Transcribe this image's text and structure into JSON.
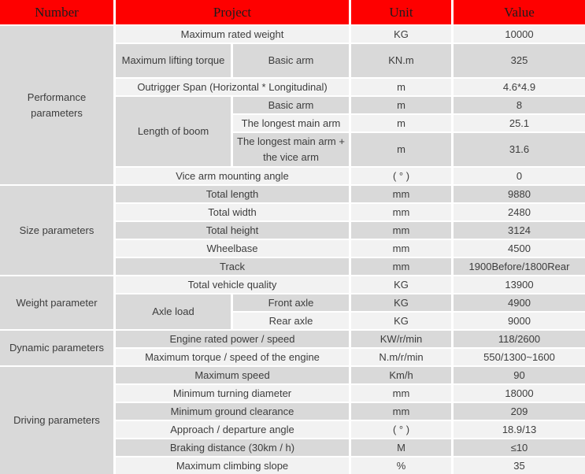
{
  "header": {
    "columns": [
      "Number",
      "Project",
      "Unit",
      "Value"
    ]
  },
  "colors": {
    "header_bg": "#fe0000",
    "header_text": "#1c1c1c",
    "row_light": "#f2f2f2",
    "row_dark": "#d9d9d9",
    "text": "#3d3d3d",
    "grid_lines": "#ffffff"
  },
  "groups": [
    {
      "name": "Performance parameters",
      "rows": [
        {
          "project": "Maximum rated weight",
          "unit": "KG",
          "value": "10000"
        },
        {
          "project": "Maximum lifting torque",
          "sub": "Basic arm",
          "unit": "KN.m",
          "value": "325",
          "tall": true
        },
        {
          "project": "Outrigger Span (Horizontal * Longitudinal)",
          "unit": "m",
          "value": "4.6*4.9"
        },
        {
          "project": "Length of boom",
          "project_rowspan": 3,
          "sub": "Basic arm",
          "unit": "m",
          "value": "8"
        },
        {
          "sub": "The longest main arm",
          "unit": "m",
          "value": "25.1"
        },
        {
          "sub": "The longest main arm + the vice arm",
          "unit": "m",
          "value": "31.6",
          "tall": true
        },
        {
          "project": "Vice arm mounting angle",
          "unit": "( ° )",
          "value": "0"
        }
      ]
    },
    {
      "name": "Size parameters",
      "rows": [
        {
          "project": "Total length",
          "unit": "mm",
          "value": "9880"
        },
        {
          "project": "Total width",
          "unit": "mm",
          "value": "2480"
        },
        {
          "project": "Total height",
          "unit": "mm",
          "value": "3124"
        },
        {
          "project": "Wheelbase",
          "unit": "mm",
          "value": "4500"
        },
        {
          "project": "Track",
          "unit": "mm",
          "value": "1900Before/1800Rear"
        }
      ]
    },
    {
      "name": "Weight parameter",
      "rows": [
        {
          "project": "Total vehicle quality",
          "unit": "KG",
          "value": "13900"
        },
        {
          "project": "Axle load",
          "project_rowspan": 2,
          "sub": "Front axle",
          "unit": "KG",
          "value": "4900"
        },
        {
          "sub": "Rear axle",
          "unit": "KG",
          "value": "9000"
        }
      ]
    },
    {
      "name": "Dynamic parameters",
      "rows": [
        {
          "project": "Engine rated power / speed",
          "unit": "KW/r/min",
          "value": "118/2600"
        },
        {
          "project": "Maximum torque / speed of the engine",
          "unit": "N.m/r/min",
          "value": "550/1300~1600"
        }
      ]
    },
    {
      "name": "Driving parameters",
      "rows": [
        {
          "project": "Maximum speed",
          "unit": "Km/h",
          "value": "90"
        },
        {
          "project": "Minimum turning diameter",
          "unit": "mm",
          "value": "18000"
        },
        {
          "project": "Minimum ground clearance",
          "unit": "mm",
          "value": "209"
        },
        {
          "project": "Approach / departure angle",
          "unit": "( ° )",
          "value": "18.9/13"
        },
        {
          "project": "Braking distance (30km / h)",
          "unit": "M",
          "value": "≤10"
        },
        {
          "project": "Maximum climbing slope",
          "unit": "%",
          "value": "35"
        }
      ]
    }
  ]
}
